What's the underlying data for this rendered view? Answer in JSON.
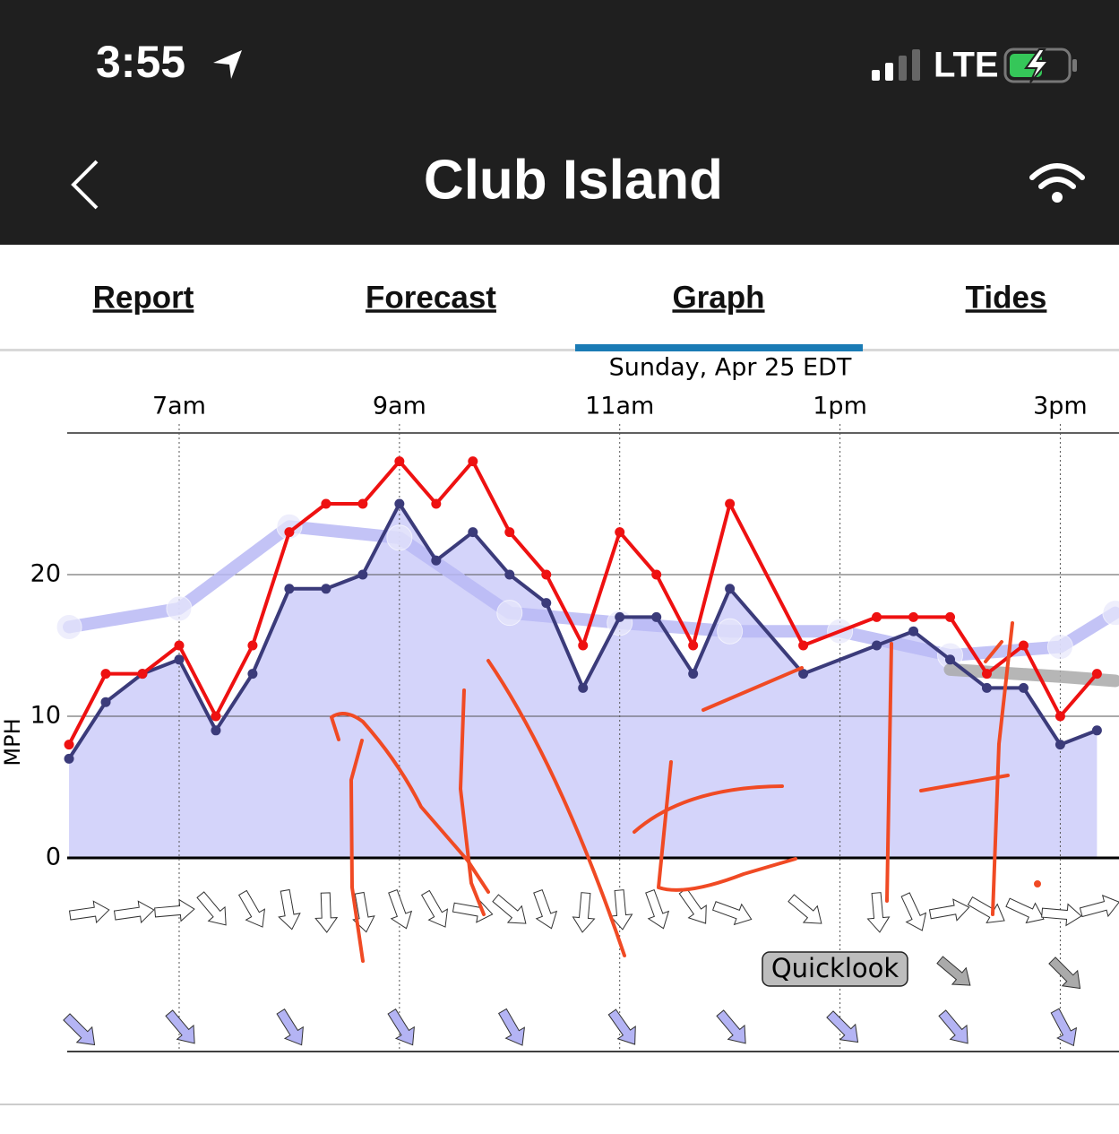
{
  "status_bar": {
    "time": "3:55",
    "network": "LTE"
  },
  "header": {
    "title": "Club Island"
  },
  "tabs": {
    "items": [
      "Report",
      "Forecast",
      "Graph",
      "Tides"
    ],
    "active": 2
  },
  "button": {
    "label": "Quicklook"
  },
  "chart_data": {
    "type": "line",
    "subtitle": "Sunday, Apr 25 EDT",
    "y_label": "MPH",
    "xlim": [
      359,
      932
    ],
    "xticks": [
      {
        "value": 420,
        "label": "7am"
      },
      {
        "value": 540,
        "label": "9am"
      },
      {
        "value": 660,
        "label": "11am"
      },
      {
        "value": 780,
        "label": "1pm"
      },
      {
        "value": 900,
        "label": "3pm"
      }
    ],
    "ylim": [
      0,
      30
    ],
    "yticks": [
      0,
      10,
      20
    ],
    "grid": true,
    "series": [
      {
        "color": "#b8b8f5",
        "line_width": 14,
        "markers": "#e8e8fc",
        "x": [
          360,
          420,
          480,
          540,
          600,
          660,
          720,
          780,
          840,
          900,
          930
        ],
        "values": [
          16.3,
          17.6,
          23.4,
          22.6,
          17.3,
          16.6,
          16,
          16,
          14.3,
          14.9,
          17.3
        ]
      },
      {
        "color": "#a9a9a9",
        "line_width": 14,
        "x": [
          840,
          900,
          930
        ],
        "values": [
          13.3,
          12.8,
          12.5
        ]
      },
      {
        "color": "#3b3b7a",
        "line_width": 4,
        "fill": "#d4d4fa",
        "markers": "#3b3b7a",
        "x": [
          360,
          380,
          400,
          420,
          440,
          460,
          480,
          500,
          520,
          540,
          560,
          580,
          600,
          620,
          640,
          660,
          680,
          700,
          720,
          760,
          800,
          820,
          840,
          860,
          880,
          900,
          920
        ],
        "values": [
          7,
          11,
          13,
          14,
          9,
          13,
          19,
          19,
          20,
          25,
          21,
          23,
          20,
          18,
          12,
          17,
          17,
          13,
          19,
          13,
          15,
          16,
          14,
          12,
          12,
          8,
          9
        ]
      },
      {
        "color": "#ee1111",
        "line_width": 4,
        "markers": "#ee1111",
        "x": [
          360,
          380,
          400,
          420,
          440,
          460,
          480,
          500,
          520,
          540,
          560,
          580,
          600,
          620,
          640,
          660,
          680,
          700,
          720,
          760,
          800,
          820,
          840,
          860,
          880,
          900,
          920
        ],
        "values": [
          8,
          13,
          13,
          15,
          10,
          15,
          23,
          25,
          25,
          28,
          25,
          28,
          23,
          20,
          15,
          23,
          20,
          15,
          25,
          15,
          17,
          17,
          17,
          13,
          15,
          10,
          13
        ]
      }
    ]
  }
}
